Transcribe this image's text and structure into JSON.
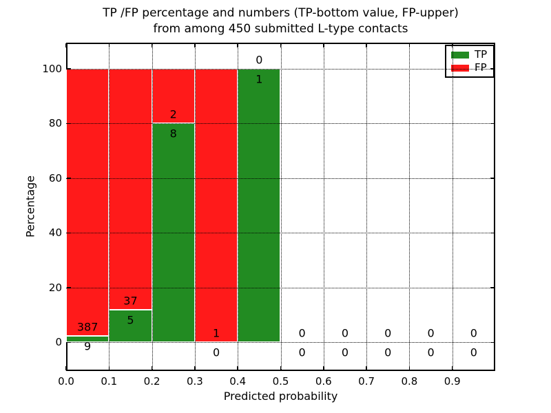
{
  "chart_data": {
    "type": "bar",
    "stacked": true,
    "title_line1": "TP /FP percentage and numbers (TP-bottom value, FP-upper)",
    "title_line2": "from among 450 submitted L-type contacts",
    "xlabel": "Predicted probability",
    "ylabel": "Percentage",
    "xlim": [
      0.0,
      1.0
    ],
    "ylim": [
      -10.5,
      109.5
    ],
    "x_tick_values": [
      0.0,
      0.1,
      0.2,
      0.3,
      0.4,
      0.5,
      0.6,
      0.7,
      0.8,
      0.9
    ],
    "x_tick_labels": [
      "0.0",
      "0.1",
      "0.2",
      "0.3",
      "0.4",
      "0.5",
      "0.6",
      "0.7",
      "0.8",
      "0.9"
    ],
    "y_ticks": [
      0,
      20,
      40,
      60,
      80,
      100
    ],
    "grid": true,
    "legend_position": "upper right",
    "series": [
      {
        "name": "TP",
        "color": "#228b22"
      },
      {
        "name": "FP",
        "color": "#ff1a1a"
      }
    ],
    "bins": [
      {
        "x_start": 0.0,
        "x_end": 0.1,
        "tp": 9,
        "fp": 387,
        "tp_pct": 2.27,
        "fp_pct": 97.73
      },
      {
        "x_start": 0.1,
        "x_end": 0.2,
        "tp": 5,
        "fp": 37,
        "tp_pct": 11.9,
        "fp_pct": 88.1
      },
      {
        "x_start": 0.2,
        "x_end": 0.3,
        "tp": 8,
        "fp": 2,
        "tp_pct": 80.0,
        "fp_pct": 20.0
      },
      {
        "x_start": 0.3,
        "x_end": 0.4,
        "tp": 0,
        "fp": 1,
        "tp_pct": 0.0,
        "fp_pct": 100.0
      },
      {
        "x_start": 0.4,
        "x_end": 0.5,
        "tp": 1,
        "fp": 0,
        "tp_pct": 100.0,
        "fp_pct": 0.0
      },
      {
        "x_start": 0.5,
        "x_end": 0.6,
        "tp": 0,
        "fp": 0,
        "tp_pct": 0.0,
        "fp_pct": 0.0
      },
      {
        "x_start": 0.6,
        "x_end": 0.7,
        "tp": 0,
        "fp": 0,
        "tp_pct": 0.0,
        "fp_pct": 0.0
      },
      {
        "x_start": 0.7,
        "x_end": 0.8,
        "tp": 0,
        "fp": 0,
        "tp_pct": 0.0,
        "fp_pct": 0.0
      },
      {
        "x_start": 0.8,
        "x_end": 0.9,
        "tp": 0,
        "fp": 0,
        "tp_pct": 0.0,
        "fp_pct": 0.0
      },
      {
        "x_start": 0.9,
        "x_end": 1.0,
        "tp": 0,
        "fp": 0,
        "tp_pct": 0.0,
        "fp_pct": 0.0
      }
    ]
  }
}
